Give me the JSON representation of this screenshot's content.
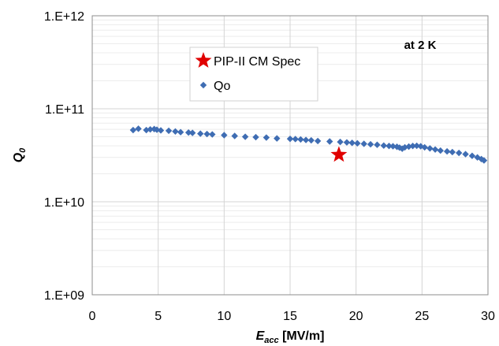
{
  "chart_data": {
    "type": "scatter",
    "x_scale": "linear",
    "y_scale": "log",
    "xlim": [
      0,
      30
    ],
    "ylim": [
      1000000000.0,
      1000000000000.0
    ],
    "x_ticks": [
      0,
      5,
      10,
      15,
      20,
      25,
      30
    ],
    "x_tick_labels": [
      "0",
      "5",
      "10",
      "15",
      "20",
      "25",
      "30"
    ],
    "y_ticks": [
      1000000000.0,
      10000000000.0,
      100000000000.0,
      1000000000000.0
    ],
    "y_tick_labels": [
      "1.E+09",
      "1.E+10",
      "1.E+11",
      "1.E+12"
    ],
    "xlabel": {
      "main": "E",
      "sub": "acc",
      "unit": " [MV/m]"
    },
    "ylabel": {
      "main": "Q",
      "sub": "0"
    },
    "grid": {
      "major": true,
      "minor_y": true
    },
    "annotation": "at 2 K",
    "legend_position": "upper-left",
    "series": [
      {
        "name": "PIP-II CM Spec",
        "marker": "star",
        "color": "#e00000",
        "points": [
          [
            18.7,
            32000000000.0
          ]
        ]
      },
      {
        "name": "Qo",
        "marker": "diamond",
        "color": "#3f6db3",
        "points": [
          [
            3.1,
            59000000000.0
          ],
          [
            3.5,
            61000000000.0
          ],
          [
            4.1,
            59000000000.0
          ],
          [
            4.4,
            60000000000.0
          ],
          [
            4.7,
            60500000000.0
          ],
          [
            4.9,
            59500000000.0
          ],
          [
            5.2,
            58500000000.0
          ],
          [
            5.8,
            58000000000.0
          ],
          [
            6.3,
            57000000000.0
          ],
          [
            6.7,
            56000000000.0
          ],
          [
            7.3,
            55500000000.0
          ],
          [
            7.6,
            55000000000.0
          ],
          [
            8.2,
            54000000000.0
          ],
          [
            8.7,
            53500000000.0
          ],
          [
            9.1,
            53000000000.0
          ],
          [
            10.0,
            52000000000.0
          ],
          [
            10.8,
            51000000000.0
          ],
          [
            11.6,
            50000000000.0
          ],
          [
            12.4,
            49500000000.0
          ],
          [
            13.2,
            49000000000.0
          ],
          [
            14.0,
            48000000000.0
          ],
          [
            15.0,
            47500000000.0
          ],
          [
            15.4,
            47200000000.0
          ],
          [
            15.8,
            46800000000.0
          ],
          [
            16.2,
            46200000000.0
          ],
          [
            16.6,
            45800000000.0
          ],
          [
            17.1,
            45000000000.0
          ],
          [
            18.0,
            44500000000.0
          ],
          [
            18.8,
            44000000000.0
          ],
          [
            19.3,
            43500000000.0
          ],
          [
            19.7,
            43000000000.0
          ],
          [
            20.1,
            42500000000.0
          ],
          [
            20.6,
            42000000000.0
          ],
          [
            21.1,
            41500000000.0
          ],
          [
            21.6,
            41000000000.0
          ],
          [
            22.1,
            40200000000.0
          ],
          [
            22.5,
            39800000000.0
          ],
          [
            22.8,
            39500000000.0
          ],
          [
            23.1,
            39000000000.0
          ],
          [
            23.3,
            38200000000.0
          ],
          [
            23.5,
            37200000000.0
          ],
          [
            23.7,
            38500000000.0
          ],
          [
            24.0,
            39200000000.0
          ],
          [
            24.3,
            39800000000.0
          ],
          [
            24.6,
            40000000000.0
          ],
          [
            24.9,
            39500000000.0
          ],
          [
            25.2,
            38500000000.0
          ],
          [
            25.6,
            37500000000.0
          ],
          [
            26.0,
            36500000000.0
          ],
          [
            26.4,
            35500000000.0
          ],
          [
            26.9,
            34800000000.0
          ],
          [
            27.3,
            34200000000.0
          ],
          [
            27.8,
            33500000000.0
          ],
          [
            28.3,
            32500000000.0
          ],
          [
            28.8,
            31200000000.0
          ],
          [
            29.2,
            30000000000.0
          ],
          [
            29.5,
            28800000000.0
          ],
          [
            29.7,
            27800000000.0
          ]
        ]
      }
    ]
  }
}
